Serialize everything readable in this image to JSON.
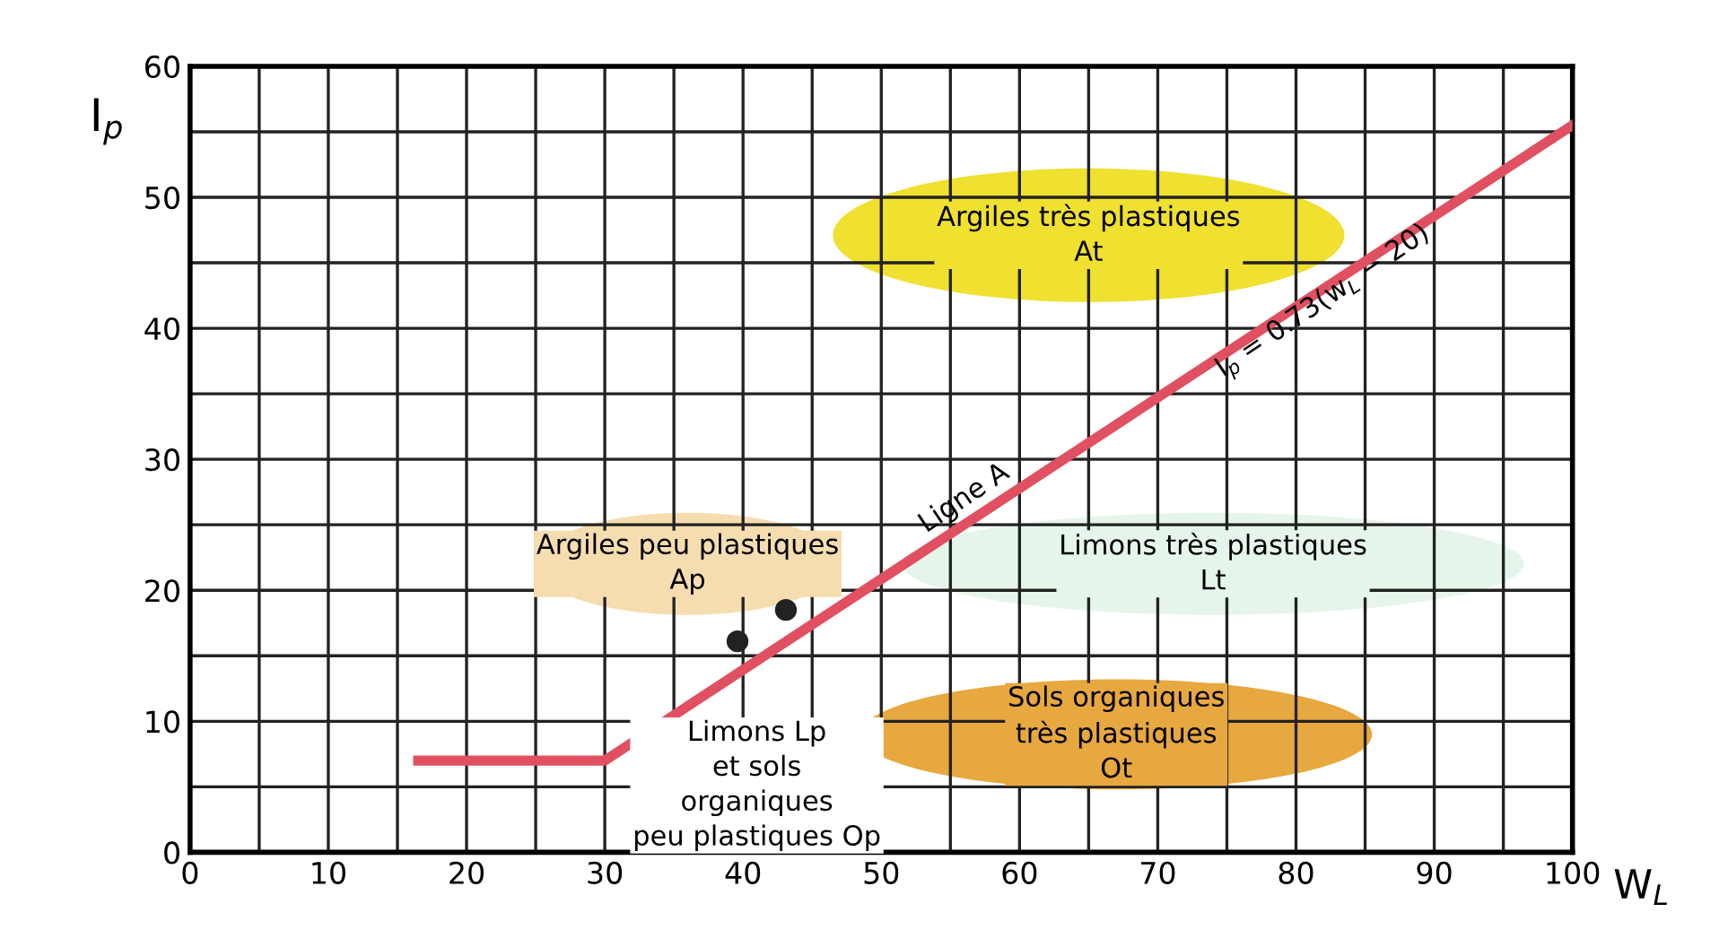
{
  "chart_data": {
    "type": "line",
    "xlabel": "W$_{L}$",
    "ylabel": "I$_{p}$",
    "series": [
      {
        "color": "#e05060",
        "x": [
          16.5,
          30,
          100
        ],
        "values": [
          7,
          7,
          55.5
        ]
      },
      {
        "type": "scatter",
        "color": "#222222",
        "marker": "circle",
        "x": [
          39.6,
          43.1
        ],
        "values": [
          16.1,
          18.5
        ]
      }
    ],
    "xlim": [
      0,
      100
    ],
    "ylim": [
      0,
      60
    ],
    "xticks": [
      0,
      {
        "value": 5,
        "label": null
      },
      10,
      {
        "value": 15,
        "label": null
      },
      20,
      {
        "value": 25,
        "label": null
      },
      30,
      {
        "value": 35,
        "label": null
      },
      40,
      {
        "value": 45,
        "label": null
      },
      50,
      {
        "value": 55,
        "label": null
      },
      60,
      {
        "value": 65,
        "label": null
      },
      70,
      {
        "value": 75,
        "label": null
      },
      80,
      {
        "value": 85,
        "label": null
      },
      90,
      {
        "value": 95,
        "label": null
      },
      100
    ],
    "yticks": [
      0,
      {
        "value": 5,
        "label": null
      },
      10,
      {
        "value": 15,
        "label": null
      },
      20,
      {
        "value": 25,
        "label": null
      },
      30,
      {
        "value": 35,
        "label": null
      },
      40,
      {
        "value": 45,
        "label": null
      },
      50,
      {
        "value": 55,
        "label": null
      },
      60
    ],
    "grid": true,
    "line_style": "solid",
    "annotations": [
      "Argiles très plastiques\nAt",
      "Argiles peu plastiques\nAp",
      "Limons très plastiques\nLt",
      "Sols organiques\ntrès plastiques\nOt",
      "Limons Lp\net sols\norganiques\npeu plastiques Op",
      "Ligne A",
      "I$_{p}$ = 0.73(w$_{L}$ − 20)"
    ]
  }
}
